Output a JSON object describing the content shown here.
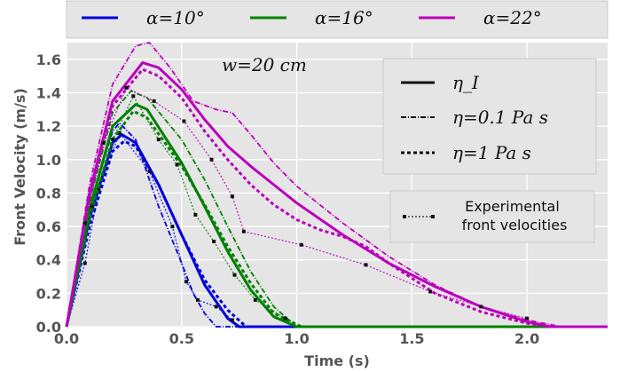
{
  "chart_data": {
    "type": "line",
    "xlabel": "Time (s)",
    "ylabel": "Front Velocity (m/s)",
    "xlim": [
      0,
      2.35
    ],
    "ylim": [
      0,
      1.7
    ],
    "x_ticks": [
      "0.0",
      "0.5",
      "1.0",
      "1.5",
      "2.0"
    ],
    "x_tick_values": [
      0,
      0.5,
      1.0,
      1.5,
      2.0
    ],
    "y_ticks": [
      "0.0",
      "0.2",
      "0.4",
      "0.6",
      "0.8",
      "1.0",
      "1.2",
      "1.4",
      "1.6"
    ],
    "y_tick_values": [
      0,
      0.2,
      0.4,
      0.6,
      0.8,
      1.0,
      1.2,
      1.4,
      1.6
    ],
    "grid": true,
    "background": "#e5e5e5",
    "annotation": "w=20 cm",
    "top_legend": [
      {
        "label": "α=10°",
        "color": "#0000dd"
      },
      {
        "label": "α=16°",
        "color": "#008000"
      },
      {
        "label": "α=22°",
        "color": "#bb00bb"
      }
    ],
    "style_legend": [
      {
        "label": "η_I",
        "style": "solid"
      },
      {
        "label": "η=0.1 Pa s",
        "style": "dashdot"
      },
      {
        "label": "η=1 Pa s",
        "style": "dashed"
      }
    ],
    "experimental_legend": "Experimental\nfront velocities",
    "series": [
      {
        "color": "#0000dd",
        "style": "solid",
        "points": [
          [
            0,
            0
          ],
          [
            0.1,
            0.65
          ],
          [
            0.2,
            1.1
          ],
          [
            0.24,
            1.15
          ],
          [
            0.3,
            1.1
          ],
          [
            0.4,
            0.85
          ],
          [
            0.5,
            0.55
          ],
          [
            0.6,
            0.25
          ],
          [
            0.7,
            0.05
          ],
          [
            0.75,
            0.0
          ],
          [
            2.35,
            0.0
          ]
        ]
      },
      {
        "color": "#0000dd",
        "style": "dashdot",
        "points": [
          [
            0,
            0
          ],
          [
            0.1,
            0.72
          ],
          [
            0.2,
            1.17
          ],
          [
            0.23,
            1.22
          ],
          [
            0.3,
            1.12
          ],
          [
            0.4,
            0.72
          ],
          [
            0.5,
            0.38
          ],
          [
            0.55,
            0.2
          ],
          [
            0.6,
            0.08
          ],
          [
            0.65,
            0.0
          ],
          [
            2.35,
            0.0
          ]
        ]
      },
      {
        "color": "#0000dd",
        "style": "dashed",
        "points": [
          [
            0,
            0
          ],
          [
            0.1,
            0.6
          ],
          [
            0.2,
            1.05
          ],
          [
            0.25,
            1.11
          ],
          [
            0.3,
            1.08
          ],
          [
            0.4,
            0.85
          ],
          [
            0.5,
            0.55
          ],
          [
            0.6,
            0.28
          ],
          [
            0.7,
            0.1
          ],
          [
            0.78,
            0.0
          ],
          [
            2.35,
            0.0
          ]
        ]
      },
      {
        "color": "#0000dd",
        "style": "experimental",
        "points": [
          [
            0,
            0
          ],
          [
            0.08,
            0.38
          ],
          [
            0.14,
            0.82
          ],
          [
            0.23,
            1.16
          ],
          [
            0.36,
            0.93
          ],
          [
            0.46,
            0.6
          ],
          [
            0.52,
            0.27
          ],
          [
            0.57,
            0.16
          ],
          [
            0.65,
            0.12
          ],
          [
            0.72,
            0.04
          ]
        ]
      },
      {
        "color": "#008000",
        "style": "solid",
        "points": [
          [
            0,
            0
          ],
          [
            0.1,
            0.7
          ],
          [
            0.2,
            1.2
          ],
          [
            0.3,
            1.33
          ],
          [
            0.35,
            1.3
          ],
          [
            0.5,
            0.98
          ],
          [
            0.6,
            0.72
          ],
          [
            0.7,
            0.45
          ],
          [
            0.8,
            0.22
          ],
          [
            0.9,
            0.06
          ],
          [
            1.0,
            0.0
          ],
          [
            2.35,
            0.0
          ]
        ]
      },
      {
        "color": "#008000",
        "style": "dashdot",
        "points": [
          [
            0,
            0
          ],
          [
            0.1,
            0.75
          ],
          [
            0.2,
            1.28
          ],
          [
            0.28,
            1.41
          ],
          [
            0.35,
            1.37
          ],
          [
            0.5,
            1.12
          ],
          [
            0.6,
            0.88
          ],
          [
            0.7,
            0.6
          ],
          [
            0.8,
            0.33
          ],
          [
            0.9,
            0.12
          ],
          [
            1.0,
            0.0
          ],
          [
            2.35,
            0.0
          ]
        ]
      },
      {
        "color": "#008000",
        "style": "dashed",
        "points": [
          [
            0,
            0
          ],
          [
            0.1,
            0.65
          ],
          [
            0.2,
            1.12
          ],
          [
            0.29,
            1.29
          ],
          [
            0.35,
            1.25
          ],
          [
            0.5,
            0.96
          ],
          [
            0.6,
            0.73
          ],
          [
            0.7,
            0.48
          ],
          [
            0.8,
            0.26
          ],
          [
            0.9,
            0.08
          ],
          [
            1.02,
            0.0
          ],
          [
            2.35,
            0.0
          ]
        ]
      },
      {
        "color": "#008000",
        "style": "experimental",
        "points": [
          [
            0,
            0
          ],
          [
            0.11,
            0.72
          ],
          [
            0.2,
            1.12
          ],
          [
            0.29,
            1.38
          ],
          [
            0.4,
            1.12
          ],
          [
            0.48,
            0.97
          ],
          [
            0.56,
            0.67
          ],
          [
            0.64,
            0.51
          ],
          [
            0.73,
            0.31
          ],
          [
            0.82,
            0.16
          ],
          [
            0.95,
            0.05
          ]
        ]
      },
      {
        "color": "#bb00bb",
        "style": "solid",
        "points": [
          [
            0,
            0
          ],
          [
            0.1,
            0.8
          ],
          [
            0.2,
            1.35
          ],
          [
            0.33,
            1.58
          ],
          [
            0.4,
            1.55
          ],
          [
            0.5,
            1.42
          ],
          [
            0.6,
            1.24
          ],
          [
            0.7,
            1.08
          ],
          [
            0.8,
            0.96
          ],
          [
            0.9,
            0.85
          ],
          [
            1.0,
            0.74
          ],
          [
            1.2,
            0.55
          ],
          [
            1.4,
            0.38
          ],
          [
            1.6,
            0.24
          ],
          [
            1.8,
            0.12
          ],
          [
            2.0,
            0.03
          ],
          [
            2.1,
            0.0
          ],
          [
            2.35,
            0.0
          ]
        ]
      },
      {
        "color": "#bb00bb",
        "style": "dashdot",
        "points": [
          [
            0,
            0
          ],
          [
            0.1,
            0.85
          ],
          [
            0.2,
            1.45
          ],
          [
            0.3,
            1.68
          ],
          [
            0.36,
            1.7
          ],
          [
            0.45,
            1.55
          ],
          [
            0.55,
            1.35
          ],
          [
            0.65,
            1.3
          ],
          [
            0.72,
            1.28
          ],
          [
            0.8,
            1.15
          ],
          [
            0.9,
            0.98
          ],
          [
            1.0,
            0.84
          ],
          [
            1.2,
            0.62
          ],
          [
            1.4,
            0.42
          ],
          [
            1.6,
            0.25
          ],
          [
            1.8,
            0.12
          ],
          [
            2.0,
            0.04
          ],
          [
            2.15,
            0.0
          ],
          [
            2.35,
            0.0
          ]
        ]
      },
      {
        "color": "#bb00bb",
        "style": "dashed",
        "points": [
          [
            0,
            0
          ],
          [
            0.1,
            0.78
          ],
          [
            0.2,
            1.32
          ],
          [
            0.33,
            1.54
          ],
          [
            0.4,
            1.5
          ],
          [
            0.5,
            1.37
          ],
          [
            0.6,
            1.17
          ],
          [
            0.7,
            1.0
          ],
          [
            0.8,
            0.85
          ],
          [
            0.9,
            0.73
          ],
          [
            1.0,
            0.64
          ],
          [
            1.1,
            0.58
          ],
          [
            1.2,
            0.54
          ],
          [
            1.3,
            0.48
          ],
          [
            1.4,
            0.38
          ],
          [
            1.5,
            0.29
          ],
          [
            1.6,
            0.2
          ],
          [
            1.8,
            0.09
          ],
          [
            2.0,
            0.02
          ],
          [
            2.1,
            0.0
          ],
          [
            2.35,
            0.0
          ]
        ]
      },
      {
        "color": "#bb00bb",
        "style": "experimental",
        "points": [
          [
            0,
            0
          ],
          [
            0.08,
            0.62
          ],
          [
            0.16,
            1.1
          ],
          [
            0.26,
            1.43
          ],
          [
            0.38,
            1.35
          ],
          [
            0.51,
            1.23
          ],
          [
            0.63,
            1.0
          ],
          [
            0.72,
            0.78
          ],
          [
            0.77,
            0.57
          ],
          [
            1.02,
            0.49
          ],
          [
            1.3,
            0.37
          ],
          [
            1.58,
            0.21
          ],
          [
            1.8,
            0.12
          ],
          [
            2.0,
            0.05
          ]
        ]
      }
    ]
  }
}
